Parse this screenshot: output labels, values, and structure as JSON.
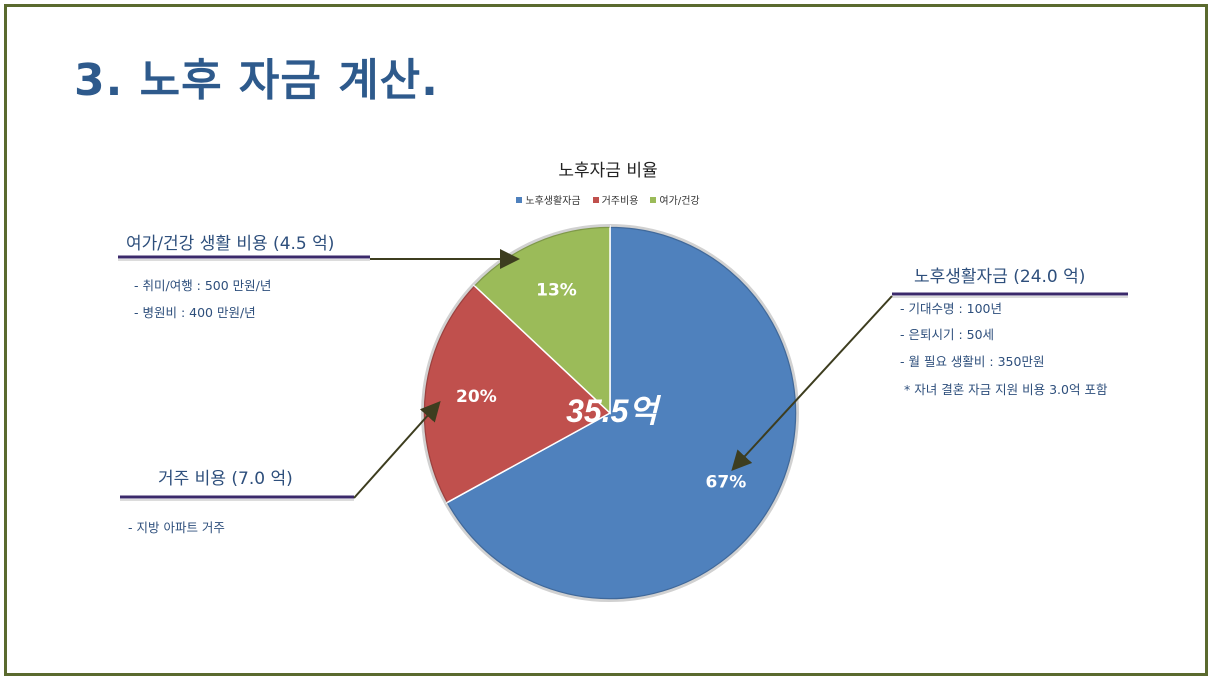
{
  "page": {
    "title": "3. 노후 자금 계산."
  },
  "chart_data": {
    "type": "pie",
    "title": "노후자금 비율",
    "center_label": "35.5억",
    "slices": [
      {
        "name": "노후생활자금",
        "value": 67,
        "label": "67%",
        "color": "#4f81bd"
      },
      {
        "name": "거주비용",
        "value": 20,
        "label": "20%",
        "color": "#c0504d"
      },
      {
        "name": "여가/건강",
        "value": 13,
        "label": "13%",
        "color": "#9bbb59"
      }
    ],
    "legend_position": "top"
  },
  "annotations": {
    "leisure": {
      "title": "여가/건강 생활 비용 (4.5 억)",
      "items": [
        "- 취미/여행 : 500 만원/년",
        "- 병원비 : 400 만원/년"
      ]
    },
    "living": {
      "title": "노후생활자금 (24.0 억)",
      "items": [
        "- 기대수명 : 100년",
        "- 은퇴시기 : 50세",
        "- 월 필요 생활비 : 350만원",
        "* 자녀 결혼 자금 지원 비용 3.0억 포함"
      ]
    },
    "housing": {
      "title": "거주 비용 (7.0 억)",
      "items": [
        "- 지방 아파트 거주"
      ]
    }
  }
}
